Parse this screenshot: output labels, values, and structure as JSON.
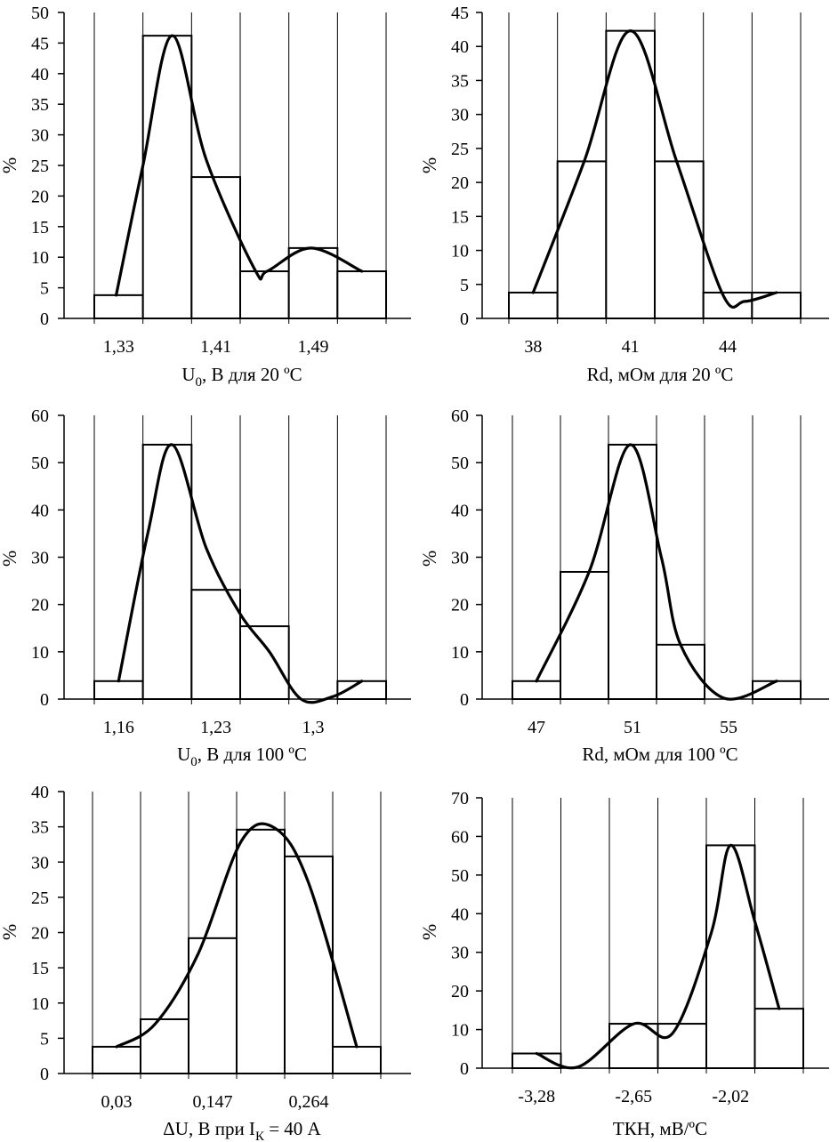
{
  "chart_data": [
    {
      "type": "bar",
      "variant": "histogram-with-smoothed-curve",
      "title": "",
      "ylabel": "%",
      "xlabel": {
        "main": "U",
        "sub": "0",
        "tail": ", В для 20 ºС"
      },
      "ylim": [
        0,
        50
      ],
      "yticks": [
        0,
        5,
        10,
        15,
        20,
        25,
        30,
        35,
        40,
        45,
        50
      ],
      "bin_values": [
        3.8,
        46.2,
        23.1,
        7.7,
        11.5,
        7.7
      ],
      "xtick_labels": [
        {
          "bin": 0.5,
          "text": "1,33"
        },
        {
          "bin": 2.5,
          "text": "1,41"
        },
        {
          "bin": 4.5,
          "text": "1,49"
        }
      ],
      "curve": [
        [
          0.45,
          3.8
        ],
        [
          1.0,
          25
        ],
        [
          1.6,
          46.2
        ],
        [
          2.3,
          26
        ],
        [
          3.3,
          8
        ],
        [
          3.55,
          7.7
        ],
        [
          4.45,
          11.5
        ],
        [
          5.5,
          7.7
        ]
      ]
    },
    {
      "type": "bar",
      "variant": "histogram-with-smoothed-curve",
      "title": "",
      "ylabel": "%",
      "xlabel": {
        "main": "Rd, мОм для 20 ºС"
      },
      "ylim": [
        0,
        45
      ],
      "yticks": [
        0,
        5,
        10,
        15,
        20,
        25,
        30,
        35,
        40,
        45
      ],
      "bin_values": [
        3.8,
        23.1,
        42.3,
        23.1,
        3.8,
        3.8
      ],
      "xtick_labels": [
        {
          "bin": 0.5,
          "text": "38"
        },
        {
          "bin": 2.5,
          "text": "41"
        },
        {
          "bin": 4.5,
          "text": "44"
        }
      ],
      "curve": [
        [
          0.5,
          3.8
        ],
        [
          1.55,
          23.1
        ],
        [
          2.5,
          42.3
        ],
        [
          3.45,
          23.1
        ],
        [
          4.4,
          3.5
        ],
        [
          4.85,
          2.5
        ],
        [
          5.5,
          3.8
        ]
      ]
    },
    {
      "type": "bar",
      "variant": "histogram-with-smoothed-curve",
      "title": "",
      "ylabel": "%",
      "xlabel": {
        "main": "U",
        "sub": "0",
        "tail": ", В для 100 ºС"
      },
      "ylim": [
        0,
        60
      ],
      "yticks": [
        0,
        10,
        20,
        30,
        40,
        50,
        60
      ],
      "bin_values": [
        3.8,
        53.8,
        23.1,
        15.4,
        0,
        3.8
      ],
      "xtick_labels": [
        {
          "bin": 0.5,
          "text": "1,16"
        },
        {
          "bin": 2.5,
          "text": "1,23"
        },
        {
          "bin": 4.5,
          "text": "1,3"
        }
      ],
      "curve": [
        [
          0.5,
          3.8
        ],
        [
          1.1,
          35
        ],
        [
          1.6,
          53.8
        ],
        [
          2.3,
          32
        ],
        [
          3.0,
          18
        ],
        [
          3.6,
          10
        ],
        [
          4.25,
          0
        ],
        [
          4.9,
          0.5
        ],
        [
          5.5,
          3.8
        ]
      ]
    },
    {
      "type": "bar",
      "variant": "histogram-with-smoothed-curve",
      "title": "",
      "ylabel": "%",
      "xlabel": {
        "main": "Rd, мОм для 100 ºС"
      },
      "ylim": [
        0,
        60
      ],
      "yticks": [
        0,
        10,
        20,
        30,
        40,
        50,
        60
      ],
      "bin_values": [
        3.8,
        26.9,
        53.8,
        11.5,
        0,
        3.8
      ],
      "xtick_labels": [
        {
          "bin": 0.5,
          "text": "47"
        },
        {
          "bin": 2.5,
          "text": "51"
        },
        {
          "bin": 4.5,
          "text": "55"
        }
      ],
      "curve": [
        [
          0.5,
          3.8
        ],
        [
          1.6,
          27
        ],
        [
          2.45,
          53.8
        ],
        [
          3.1,
          30
        ],
        [
          3.5,
          11.5
        ],
        [
          4.4,
          0.2
        ],
        [
          5.5,
          3.8
        ]
      ]
    },
    {
      "type": "bar",
      "variant": "histogram-with-smoothed-curve",
      "title": "",
      "ylabel": "%",
      "xlabel": {
        "main": "ΔU, В при I",
        "sub": "К",
        "tail": " = 40 А"
      },
      "ylim": [
        0,
        40
      ],
      "yticks": [
        0,
        5,
        10,
        15,
        20,
        25,
        30,
        35,
        40
      ],
      "bin_values": [
        3.8,
        7.7,
        19.2,
        34.6,
        30.8,
        3.8
      ],
      "xtick_labels": [
        {
          "bin": 0.5,
          "text": "0,03"
        },
        {
          "bin": 2.5,
          "text": "0,147"
        },
        {
          "bin": 4.5,
          "text": "0,264"
        }
      ],
      "curve": [
        [
          0.5,
          3.8
        ],
        [
          1.3,
          7
        ],
        [
          2.2,
          17
        ],
        [
          3.1,
          33
        ],
        [
          3.8,
          34.8
        ],
        [
          4.5,
          27
        ],
        [
          5.5,
          3.8
        ]
      ]
    },
    {
      "type": "bar",
      "variant": "histogram-with-smoothed-curve",
      "title": "",
      "ylabel": "%",
      "xlabel": {
        "main": "ТКН, мВ/ºС"
      },
      "ylim": [
        0,
        70
      ],
      "yticks": [
        0,
        10,
        20,
        30,
        40,
        50,
        60,
        70
      ],
      "bin_values": [
        3.8,
        0,
        11.5,
        11.5,
        57.7,
        15.4
      ],
      "xtick_labels": [
        {
          "bin": 0.5,
          "text": "-3,28"
        },
        {
          "bin": 2.5,
          "text": "-2,65"
        },
        {
          "bin": 4.5,
          "text": "-2,02"
        }
      ],
      "curve": [
        [
          0.5,
          3.8
        ],
        [
          1.35,
          0.3
        ],
        [
          2.5,
          11.5
        ],
        [
          3.3,
          9
        ],
        [
          4.1,
          35
        ],
        [
          4.5,
          57.7
        ],
        [
          5.0,
          38
        ],
        [
          5.5,
          15.4
        ]
      ]
    }
  ]
}
